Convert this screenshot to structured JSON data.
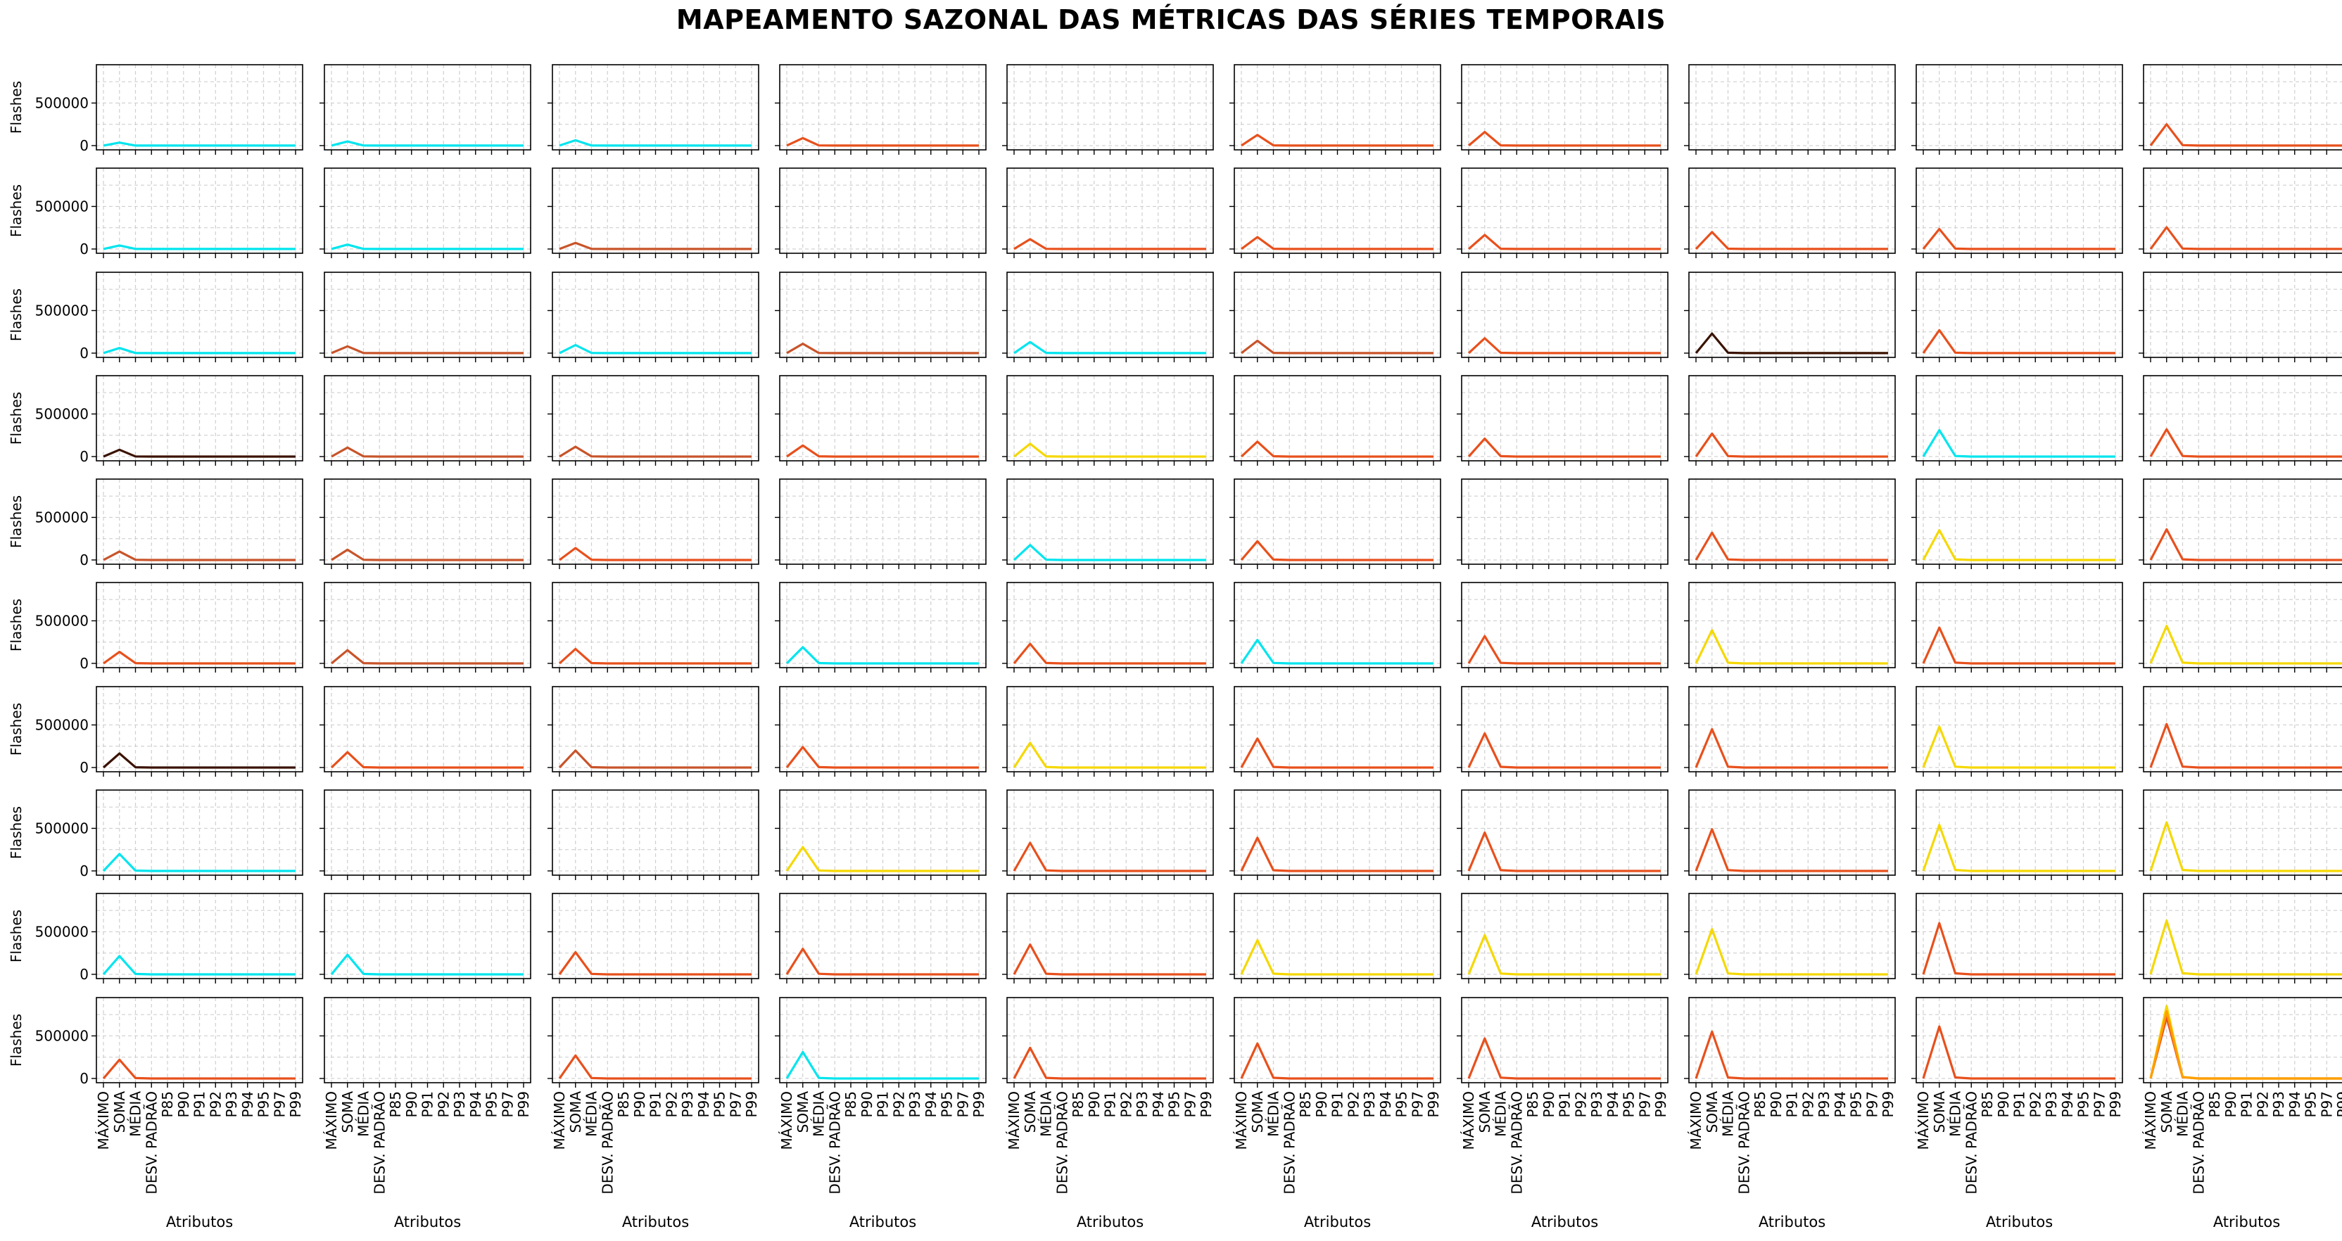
{
  "title": "MAPEAMENTO SAZONAL DAS MÉTRICAS DAS SÉRIES TEMPORAIS",
  "chart_data": {
    "type": "line",
    "layout": "small-multiples",
    "rows": 10,
    "cols": 10,
    "ylabel": "Flashes",
    "xlabel": "Atributos",
    "ylim": [
      -50000,
      950000
    ],
    "yticks": [
      0,
      500000
    ],
    "grid": true,
    "categories": [
      "MÁXIMO",
      "SOMA",
      "MÉDIA",
      "DESV. PADRÃO",
      "P85",
      "P90",
      "P91",
      "P92",
      "P93",
      "P94",
      "P95",
      "P97",
      "P99"
    ],
    "colors": {
      "C": "#00e5ee",
      "O": "#e8501c",
      "Y": "#f5d800",
      "D": "#3a1200",
      "B": "#c8542a"
    },
    "panels": [
      {
        "color": "C",
        "peak": 35000
      },
      {
        "color": "C",
        "peak": 48000
      },
      {
        "color": "C",
        "peak": 62000
      },
      {
        "color": "O",
        "peak": 88000
      },
      {
        "color": "",
        "peak": 0
      },
      {
        "color": "O",
        "peak": 125000
      },
      {
        "color": "O",
        "peak": 160000
      },
      {
        "color": "",
        "peak": 0
      },
      {
        "color": "",
        "peak": 0
      },
      {
        "color": "O",
        "peak": 250000
      },
      {
        "color": "C",
        "peak": 42000
      },
      {
        "color": "C",
        "peak": 52000
      },
      {
        "color": "B",
        "peak": 72000
      },
      {
        "color": "",
        "peak": 0
      },
      {
        "color": "O",
        "peak": 115000
      },
      {
        "color": "O",
        "peak": 140000
      },
      {
        "color": "O",
        "peak": 165000
      },
      {
        "color": "O",
        "peak": 200000
      },
      {
        "color": "O",
        "peak": 235000
      },
      {
        "color": "O",
        "peak": 255000
      },
      {
        "color": "C",
        "peak": 60000
      },
      {
        "color": "B",
        "peak": 80000
      },
      {
        "color": "C",
        "peak": 95000
      },
      {
        "color": "B",
        "peak": 110000
      },
      {
        "color": "C",
        "peak": 130000
      },
      {
        "color": "B",
        "peak": 145000
      },
      {
        "color": "O",
        "peak": 175000
      },
      {
        "color": "D",
        "peak": 230000
      },
      {
        "color": "O",
        "peak": 270000
      },
      {
        "color": "",
        "peak": 0
      },
      {
        "color": "D",
        "peak": 80000
      },
      {
        "color": "B",
        "peak": 105000
      },
      {
        "color": "B",
        "peak": 115000
      },
      {
        "color": "O",
        "peak": 130000
      },
      {
        "color": "Y",
        "peak": 150000
      },
      {
        "color": "O",
        "peak": 175000
      },
      {
        "color": "O",
        "peak": 210000
      },
      {
        "color": "O",
        "peak": 270000
      },
      {
        "color": "C",
        "peak": 310000
      },
      {
        "color": "O",
        "peak": 320000
      },
      {
        "color": "B",
        "peak": 100000
      },
      {
        "color": "B",
        "peak": 120000
      },
      {
        "color": "O",
        "peak": 140000
      },
      {
        "color": "",
        "peak": 0
      },
      {
        "color": "C",
        "peak": 175000
      },
      {
        "color": "O",
        "peak": 220000
      },
      {
        "color": "",
        "peak": 0
      },
      {
        "color": "O",
        "peak": 320000
      },
      {
        "color": "Y",
        "peak": 350000
      },
      {
        "color": "O",
        "peak": 360000
      },
      {
        "color": "O",
        "peak": 135000
      },
      {
        "color": "B",
        "peak": 155000
      },
      {
        "color": "O",
        "peak": 170000
      },
      {
        "color": "C",
        "peak": 190000
      },
      {
        "color": "O",
        "peak": 230000
      },
      {
        "color": "C",
        "peak": 275000
      },
      {
        "color": "O",
        "peak": 320000
      },
      {
        "color": "Y",
        "peak": 390000
      },
      {
        "color": "O",
        "peak": 420000
      },
      {
        "color": "Y",
        "peak": 440000
      },
      {
        "color": "D",
        "peak": 165000
      },
      {
        "color": "O",
        "peak": 180000
      },
      {
        "color": "B",
        "peak": 200000
      },
      {
        "color": "O",
        "peak": 240000
      },
      {
        "color": "Y",
        "peak": 290000
      },
      {
        "color": "O",
        "peak": 340000
      },
      {
        "color": "O",
        "peak": 400000
      },
      {
        "color": "O",
        "peak": 450000
      },
      {
        "color": "Y",
        "peak": 480000
      },
      {
        "color": "O",
        "peak": 510000
      },
      {
        "color": "C",
        "peak": 200000
      },
      {
        "color": "",
        "peak": 0
      },
      {
        "color": "",
        "peak": 0
      },
      {
        "color": "Y",
        "peak": 280000
      },
      {
        "color": "O",
        "peak": 330000
      },
      {
        "color": "O",
        "peak": 390000
      },
      {
        "color": "O",
        "peak": 450000
      },
      {
        "color": "O",
        "peak": 490000
      },
      {
        "color": "Y",
        "peak": 540000
      },
      {
        "color": "Y",
        "peak": 570000
      },
      {
        "color": "C",
        "peak": 215000
      },
      {
        "color": "C",
        "peak": 230000
      },
      {
        "color": "O",
        "peak": 260000
      },
      {
        "color": "O",
        "peak": 300000
      },
      {
        "color": "O",
        "peak": 350000
      },
      {
        "color": "Y",
        "peak": 400000
      },
      {
        "color": "Y",
        "peak": 460000
      },
      {
        "color": "Y",
        "peak": 530000
      },
      {
        "color": "O",
        "peak": 600000
      },
      {
        "color": "Y",
        "peak": 630000
      },
      {
        "color": "O",
        "peak": 220000
      },
      {
        "color": "",
        "peak": 0
      },
      {
        "color": "O",
        "peak": 270000
      },
      {
        "color": "C",
        "peak": 310000
      },
      {
        "color": "O",
        "peak": 360000
      },
      {
        "color": "O",
        "peak": 410000
      },
      {
        "color": "O",
        "peak": 470000
      },
      {
        "color": "O",
        "peak": 550000
      },
      {
        "color": "O",
        "peak": 610000
      },
      {
        "color": "O",
        "peak": 720000,
        "extra": [
          {
            "color": "Y",
            "peak": 850000
          },
          {
            "color": "#ff9f00",
            "peak": 790000
          }
        ]
      }
    ]
  }
}
